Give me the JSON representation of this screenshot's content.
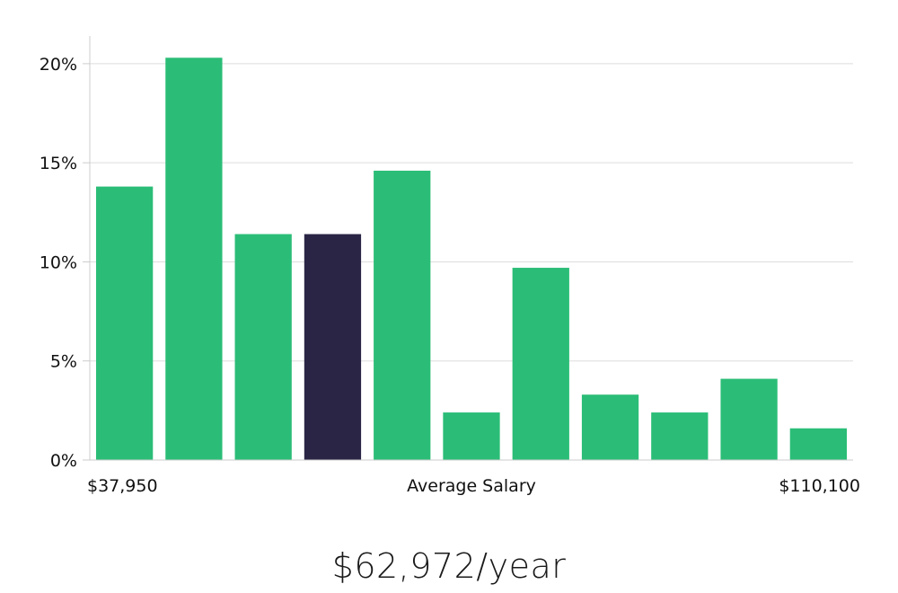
{
  "chart_data": {
    "type": "bar",
    "title": "",
    "xlabel": "Average Salary",
    "ylabel": "",
    "ylim": [
      0,
      21.4
    ],
    "yticks": [
      "0%",
      "5%",
      "10%",
      "15%",
      "20%"
    ],
    "ytick_values": [
      0,
      5,
      10,
      15,
      20
    ],
    "x_range_labels": {
      "min": "$37,950",
      "max": "$110,100"
    },
    "values": [
      13.8,
      20.3,
      11.4,
      11.4,
      14.6,
      2.4,
      9.7,
      3.3,
      2.4,
      4.1,
      1.6
    ],
    "highlight_index": 3,
    "grid": true
  },
  "colors": {
    "bar": "#2bbd77",
    "highlight": "#2a2545",
    "grid": "#dddddd",
    "axis": "#cccccc"
  },
  "average_salary": "$62,972/year"
}
